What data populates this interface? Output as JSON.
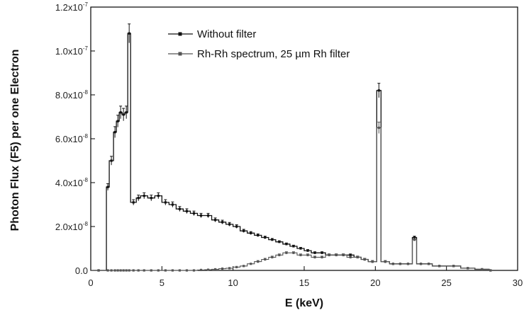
{
  "chart_data": {
    "type": "line",
    "xlabel": "E (keV)",
    "ylabel": "Photon Flux (F5) per one Electron",
    "xlim": [
      0,
      30
    ],
    "ylim": [
      0,
      1.2e-07
    ],
    "x_ticks": [
      {
        "value": 0,
        "label": "0"
      },
      {
        "value": 5,
        "label": "5"
      },
      {
        "value": 10,
        "label": "10"
      },
      {
        "value": 15,
        "label": "15"
      },
      {
        "value": 20,
        "label": "20"
      },
      {
        "value": 25,
        "label": "25"
      },
      {
        "value": 30,
        "label": "30"
      }
    ],
    "y_ticks": [
      {
        "value": 0,
        "mantissa": "0.0",
        "exponent": ""
      },
      {
        "value": 2e-08,
        "mantissa": "2.0x10",
        "exponent": "-8"
      },
      {
        "value": 4e-08,
        "mantissa": "4.0x10",
        "exponent": "-8"
      },
      {
        "value": 6e-08,
        "mantissa": "6.0x10",
        "exponent": "-8"
      },
      {
        "value": 8e-08,
        "mantissa": "8.0x10",
        "exponent": "-8"
      },
      {
        "value": 1e-07,
        "mantissa": "1.0x10",
        "exponent": "-7"
      },
      {
        "value": 1.2e-07,
        "mantissa": "1.2x10",
        "exponent": "-7"
      }
    ],
    "legend_position": "top-center",
    "series": [
      {
        "name": "Without filter",
        "style": "step",
        "color": "#111111",
        "x": [
          0,
          1.1,
          1.3,
          1.6,
          1.8,
          2.0,
          2.2,
          2.4,
          2.6,
          2.8,
          3.2,
          3.5,
          4.0,
          4.5,
          5.0,
          5.5,
          6.0,
          6.5,
          7.0,
          7.5,
          8.0,
          8.5,
          9.0,
          9.5,
          10.0,
          10.5,
          11.0,
          11.5,
          12.0,
          12.5,
          13.0,
          13.5,
          14.0,
          14.5,
          15.0,
          15.5,
          16.0,
          16.5,
          17.0,
          17.5,
          18.0,
          18.5,
          19.0,
          19.5,
          20.1,
          20.4,
          21.0,
          21.5,
          22.0,
          22.6,
          22.9,
          23.5,
          24.0,
          25.0,
          26.0,
          27.0,
          28.0
        ],
        "y": [
          0,
          3.8e-08,
          5e-08,
          6.3e-08,
          6.8e-08,
          7.2e-08,
          7.1e-08,
          7.2e-08,
          1.08e-07,
          3.1e-08,
          3.3e-08,
          3.4e-08,
          3.3e-08,
          3.4e-08,
          3.1e-08,
          3e-08,
          2.8e-08,
          2.7e-08,
          2.6e-08,
          2.5e-08,
          2.5e-08,
          2.3e-08,
          2.2e-08,
          2.1e-08,
          2e-08,
          1.8e-08,
          1.7e-08,
          1.6e-08,
          1.5e-08,
          1.4e-08,
          1.3e-08,
          1.2e-08,
          1.1e-08,
          1e-08,
          9e-09,
          8e-09,
          8e-09,
          7e-09,
          7e-09,
          7e-09,
          7e-09,
          6e-09,
          5e-09,
          4e-09,
          8.2e-08,
          4e-09,
          3e-09,
          3e-09,
          3e-09,
          1.5e-08,
          3e-09,
          3e-09,
          2e-09,
          2e-09,
          1e-09,
          5e-10,
          0
        ]
      },
      {
        "name": "Rh-Rh spectrum, 25 µm Rh filter",
        "style": "step",
        "color": "#555555",
        "x": [
          0,
          1.1,
          1.3,
          1.6,
          1.8,
          2.0,
          2.2,
          2.4,
          2.6,
          2.8,
          3.2,
          3.5,
          4.0,
          4.5,
          5.0,
          5.5,
          6.0,
          6.5,
          7.0,
          7.5,
          8.0,
          8.5,
          9.0,
          9.5,
          10.0,
          10.5,
          11.0,
          11.5,
          12.0,
          12.5,
          13.0,
          13.5,
          14.0,
          14.5,
          15.0,
          15.5,
          16.0,
          16.5,
          17.0,
          17.5,
          18.0,
          18.5,
          19.0,
          19.5,
          20.1,
          20.4,
          21.0,
          21.5,
          22.0,
          22.6,
          22.9,
          23.5,
          24.0,
          25.0,
          26.0,
          27.0,
          28.0
        ],
        "y": [
          0,
          0,
          0,
          0,
          0,
          0,
          0,
          0,
          0,
          0,
          0,
          0,
          0,
          0,
          0,
          0,
          0,
          0,
          0,
          2e-10,
          3e-10,
          5e-10,
          8e-10,
          1e-09,
          1.5e-09,
          2e-09,
          3e-09,
          4e-09,
          5e-09,
          6e-09,
          7e-09,
          8e-09,
          8e-09,
          7e-09,
          7e-09,
          6e-09,
          6e-09,
          7e-09,
          7e-09,
          7e-09,
          6e-09,
          6e-09,
          5e-09,
          4e-09,
          6.5e-08,
          4e-09,
          3e-09,
          3e-09,
          3e-09,
          1.4e-08,
          3e-09,
          3e-09,
          2e-09,
          2e-09,
          1e-09,
          5e-10,
          0
        ]
      }
    ]
  }
}
